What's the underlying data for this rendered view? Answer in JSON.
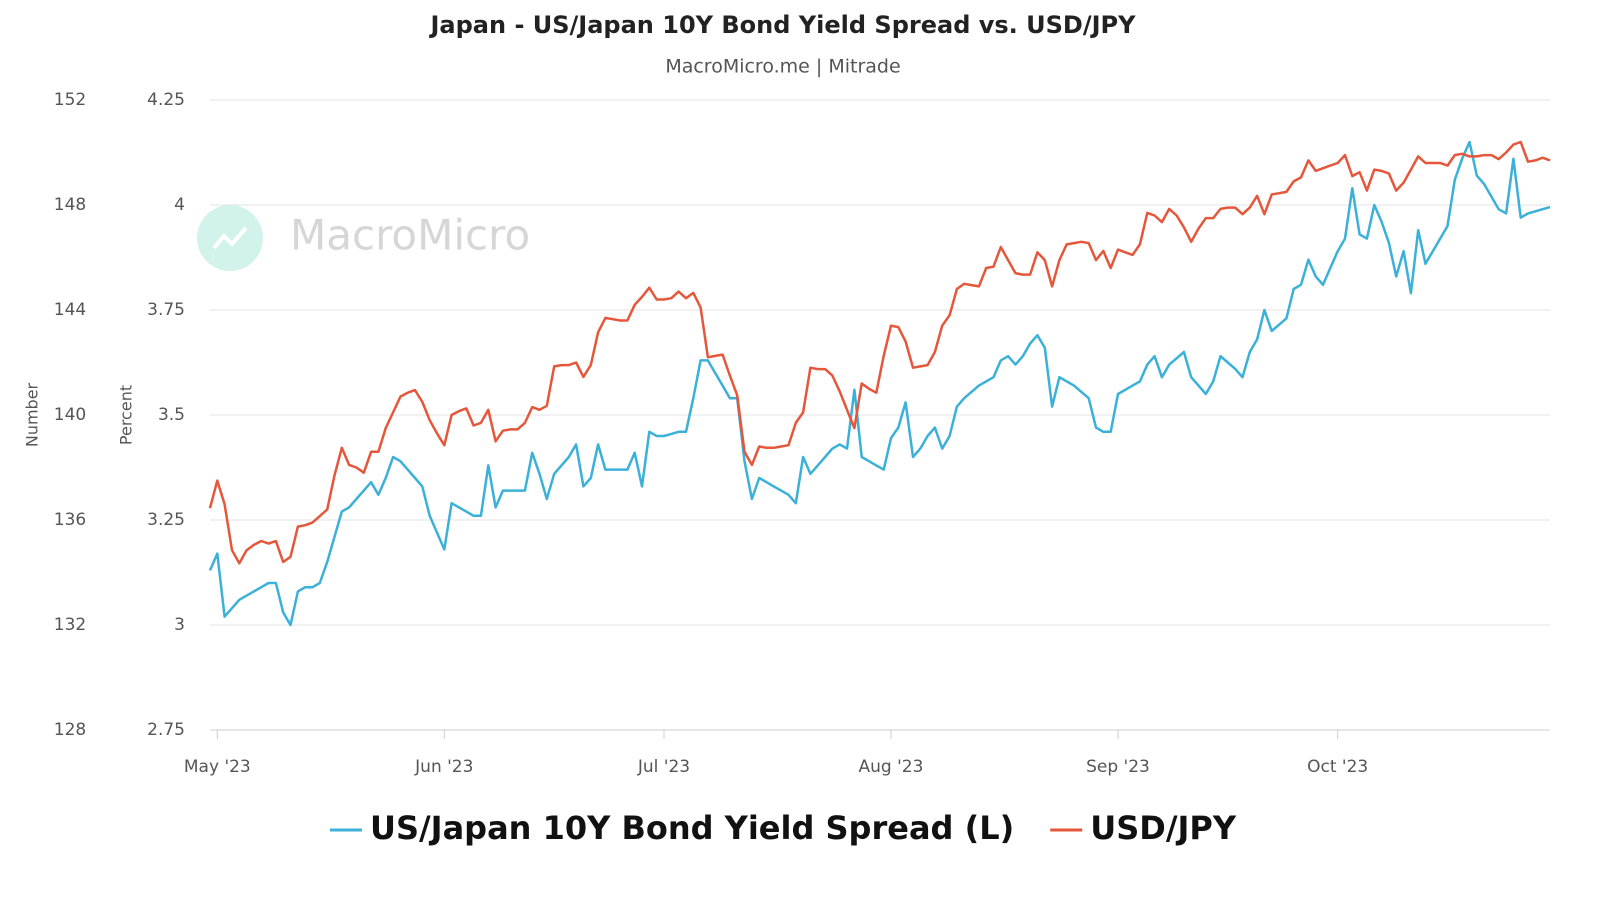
{
  "chart_data": {
    "type": "line",
    "title": "Japan - US/Japan 10Y Bond Yield Spread vs. USD/JPY",
    "subtitle": "MacroMicro.me | Mitrade",
    "watermark": "MacroMicro",
    "ylabel": "Percent",
    "y2label": "Number",
    "ylim": [
      2.75,
      4.25
    ],
    "yticks": [
      2.75,
      3,
      3.25,
      3.5,
      3.75,
      4,
      4.25
    ],
    "y2lim": [
      128,
      152
    ],
    "y2ticks": [
      128,
      132,
      136,
      140,
      144,
      148,
      152
    ],
    "grid": true,
    "legend": "bottom",
    "categories": [
      null,
      "May '23",
      null,
      null,
      null,
      null,
      null,
      null,
      null,
      null,
      null,
      null,
      null,
      null,
      null,
      null,
      null,
      null,
      null,
      null,
      null,
      null,
      null,
      null,
      null,
      null,
      null,
      null,
      null,
      null,
      null,
      null,
      "Jun '23",
      null,
      null,
      null,
      null,
      null,
      null,
      null,
      null,
      null,
      null,
      null,
      null,
      null,
      null,
      null,
      null,
      null,
      null,
      null,
      null,
      null,
      null,
      null,
      null,
      null,
      null,
      null,
      null,
      null,
      "Jul '23",
      null,
      null,
      null,
      null,
      null,
      null,
      null,
      null,
      null,
      null,
      null,
      null,
      null,
      null,
      null,
      null,
      null,
      null,
      null,
      null,
      null,
      null,
      null,
      null,
      null,
      null,
      null,
      null,
      null,
      null,
      "Aug '23",
      null,
      null,
      null,
      null,
      null,
      null,
      null,
      null,
      null,
      null,
      null,
      null,
      null,
      null,
      null,
      null,
      null,
      null,
      null,
      null,
      null,
      null,
      null,
      null,
      null,
      null,
      null,
      null,
      null,
      null,
      "Sep '23",
      null,
      null,
      null,
      null,
      null,
      null,
      null,
      null,
      null,
      null,
      null,
      null,
      null,
      null,
      null,
      null,
      null,
      null,
      null,
      null,
      null,
      null,
      null,
      null,
      null,
      null,
      null,
      null,
      null,
      "Oct '23",
      null,
      null,
      null,
      null,
      null,
      null,
      null,
      null,
      null,
      null,
      null,
      null,
      null,
      null,
      null,
      null,
      null,
      null,
      null,
      null,
      null,
      null,
      null,
      null,
      null,
      null,
      null,
      null,
      null
    ],
    "series": [
      {
        "name": "US/Japan 10Y Bond Yield Spread (L)",
        "color": "#3bb0d9",
        "axis": "y",
        "values": [
          3.13,
          3.17,
          3.02,
          3.04,
          3.06,
          3.07,
          3.08,
          3.09,
          3.1,
          3.1,
          3.03,
          3.0,
          3.08,
          3.09,
          3.09,
          3.1,
          3.15,
          3.21,
          3.27,
          3.28,
          3.3,
          3.32,
          3.34,
          3.31,
          3.35,
          3.4,
          3.39,
          3.37,
          3.35,
          3.33,
          3.26,
          3.22,
          3.18,
          3.29,
          3.28,
          3.27,
          3.26,
          3.26,
          3.38,
          3.28,
          3.32,
          3.32,
          3.32,
          3.32,
          3.41,
          3.36,
          3.3,
          3.36,
          3.38,
          3.4,
          3.43,
          3.33,
          3.35,
          3.43,
          3.37,
          3.37,
          3.37,
          3.37,
          3.41,
          3.33,
          3.46,
          3.45,
          3.45,
          3.455,
          3.46,
          3.46,
          3.54,
          3.63,
          3.63,
          3.6,
          3.57,
          3.54,
          3.54,
          3.39,
          3.3,
          3.35,
          3.34,
          3.33,
          3.32,
          3.31,
          3.29,
          3.4,
          3.36,
          3.38,
          3.4,
          3.42,
          3.43,
          3.42,
          3.56,
          3.4,
          3.39,
          3.38,
          3.37,
          3.445,
          3.47,
          3.53,
          3.4,
          3.42,
          3.45,
          3.47,
          3.42,
          3.45,
          3.52,
          3.54,
          3.555,
          3.57,
          3.58,
          3.59,
          3.63,
          3.64,
          3.62,
          3.64,
          3.67,
          3.69,
          3.66,
          3.52,
          3.59,
          3.58,
          3.57,
          3.555,
          3.54,
          3.47,
          3.46,
          3.46,
          3.55,
          3.56,
          3.57,
          3.58,
          3.62,
          3.64,
          3.59,
          3.62,
          3.635,
          3.65,
          3.59,
          3.57,
          3.55,
          3.58,
          3.64,
          3.625,
          3.61,
          3.59,
          3.65,
          3.68,
          3.75,
          3.7,
          3.715,
          3.73,
          3.8,
          3.81,
          3.87,
          3.83,
          3.81,
          3.85,
          3.89,
          3.92,
          4.04,
          3.93,
          3.92,
          4.0,
          3.96,
          3.91,
          3.83,
          3.89,
          3.79,
          3.94,
          3.86,
          3.89,
          3.92,
          3.95,
          4.06,
          4.11,
          4.15,
          4.07,
          4.05,
          4.02,
          3.99,
          3.98,
          4.11,
          3.97,
          3.98,
          3.985,
          3.99,
          3.995
        ]
      },
      {
        "name": "USD/JPY",
        "color": "#e4573b",
        "axis": "y2",
        "values": [
          136.45,
          137.5,
          136.6,
          134.85,
          134.35,
          134.85,
          135.05,
          135.2,
          135.1,
          135.2,
          134.4,
          134.6,
          135.75,
          135.8,
          135.9,
          136.15,
          136.4,
          137.7,
          138.75,
          138.1,
          138.0,
          137.8,
          138.6,
          138.6,
          139.5,
          140.1,
          140.7,
          140.85,
          140.95,
          140.5,
          139.8,
          139.3,
          138.85,
          140.0,
          140.15,
          140.25,
          139.6,
          139.7,
          140.2,
          139.0,
          139.4,
          139.45,
          139.45,
          139.7,
          140.3,
          140.2,
          140.35,
          141.85,
          141.9,
          141.9,
          142.0,
          141.45,
          141.9,
          143.15,
          143.7,
          143.65,
          143.6,
          143.6,
          144.2,
          144.5,
          144.85,
          144.4,
          144.4,
          144.45,
          144.7,
          144.45,
          144.65,
          144.1,
          142.2,
          142.25,
          142.3,
          141.5,
          140.75,
          138.6,
          138.1,
          138.8,
          138.75,
          138.75,
          138.8,
          138.85,
          139.7,
          140.1,
          141.8,
          141.75,
          141.75,
          141.5,
          140.9,
          140.2,
          139.5,
          141.2,
          141.0,
          140.85,
          142.25,
          143.4,
          143.35,
          142.8,
          141.8,
          141.85,
          141.9,
          142.4,
          143.4,
          143.8,
          144.8,
          145.0,
          144.95,
          144.9,
          145.6,
          145.65,
          146.4,
          145.9,
          145.4,
          145.35,
          145.35,
          146.2,
          145.9,
          144.9,
          145.9,
          146.5,
          146.55,
          146.6,
          146.55,
          145.9,
          146.25,
          145.6,
          146.3,
          146.2,
          146.1,
          146.5,
          147.7,
          147.6,
          147.35,
          147.85,
          147.6,
          147.15,
          146.6,
          147.1,
          147.5,
          147.5,
          147.85,
          147.9,
          147.9,
          147.65,
          147.9,
          148.35,
          147.65,
          148.4,
          148.45,
          148.5,
          148.9,
          149.05,
          149.7,
          149.3,
          149.4,
          149.5,
          149.6,
          149.9,
          149.1,
          149.25,
          148.55,
          149.35,
          149.3,
          149.2,
          148.55,
          148.85,
          149.35,
          149.85,
          149.6,
          149.6,
          149.6,
          149.5,
          149.9,
          149.95,
          149.85,
          149.85,
          149.9,
          149.9,
          149.75,
          150.0,
          150.3,
          150.4,
          149.65,
          149.7,
          149.8,
          149.7
        ]
      }
    ]
  }
}
